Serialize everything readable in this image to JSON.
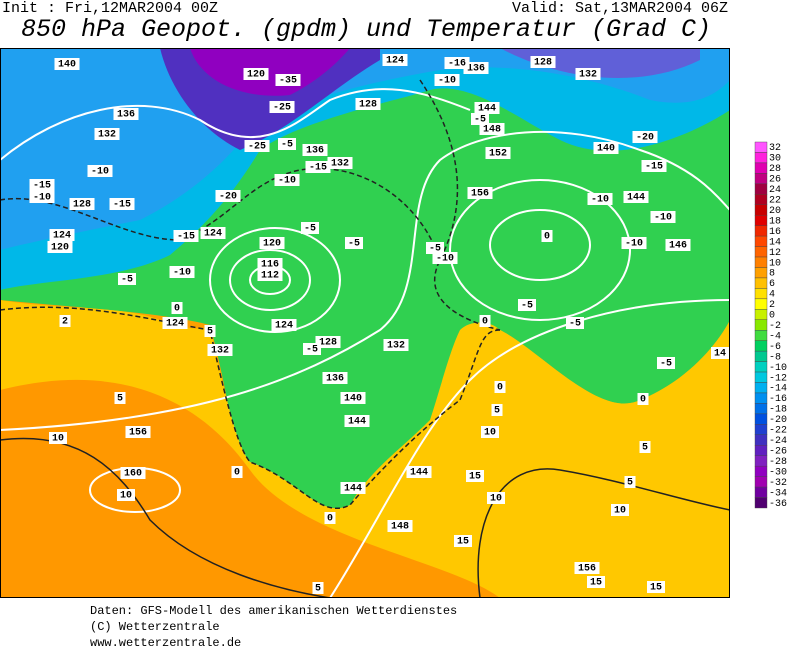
{
  "header": {
    "init": "Init : Fri,12MAR2004 00Z",
    "valid": "Valid: Sat,13MAR2004 06Z",
    "title": "850 hPa Geopot. (gpdm) und Temperatur (Grad C)"
  },
  "colorbar": {
    "levels": [
      32,
      30,
      28,
      26,
      24,
      22,
      20,
      18,
      16,
      14,
      12,
      10,
      8,
      6,
      4,
      2,
      0,
      -2,
      -4,
      -6,
      -8,
      -10,
      -12,
      -14,
      -16,
      -18,
      -20,
      -22,
      -24,
      -26,
      -28,
      -30,
      -32,
      -34,
      -36
    ],
    "colors": [
      "#ff55ff",
      "#ff22dd",
      "#e000b0",
      "#c00080",
      "#a00040",
      "#b00020",
      "#c80000",
      "#e00000",
      "#f02800",
      "#ff4800",
      "#ff6400",
      "#ff8000",
      "#ffa000",
      "#ffc000",
      "#ffe000",
      "#ffff00",
      "#c8f000",
      "#88e800",
      "#40dc40",
      "#00d060",
      "#00c890",
      "#00d0c0",
      "#00c8e0",
      "#00b0f0",
      "#0090f0",
      "#0070e8",
      "#0050e0",
      "#2040d0",
      "#4030c0",
      "#6020c0",
      "#8020c0",
      "#9000c0",
      "#a000b0",
      "#7000a0",
      "#500070"
    ]
  },
  "geopotential_labels": [
    140,
    120,
    124,
    136,
    128,
    132,
    136,
    128,
    144,
    148,
    132,
    136,
    132,
    152,
    140,
    128,
    156,
    144,
    124,
    120,
    124,
    120,
    116,
    112,
    146,
    124,
    124,
    132,
    128,
    132,
    136,
    140,
    144,
    156,
    160,
    144,
    144,
    148,
    156
  ],
  "temperature_labels": [
    -35,
    -25,
    -25,
    -5,
    -15,
    -10,
    -20,
    -15,
    -10,
    -15,
    -10,
    -15,
    -10,
    -5,
    0,
    2,
    5,
    -5,
    -5,
    -5,
    -5,
    -10,
    -16,
    -15,
    -20,
    -10,
    -10,
    -10,
    0,
    -5,
    -10,
    -5,
    -5,
    0,
    0,
    5,
    10,
    5,
    5,
    10,
    10,
    15,
    15,
    15,
    15,
    10,
    10,
    5,
    0,
    0,
    5,
    0,
    -5,
    14
  ],
  "footer": [
    "Daten: GFS-Modell des amerikanischen Wetterdienstes",
    "(C) Wetterzentrale",
    "www.wetterzentrale.de"
  ]
}
